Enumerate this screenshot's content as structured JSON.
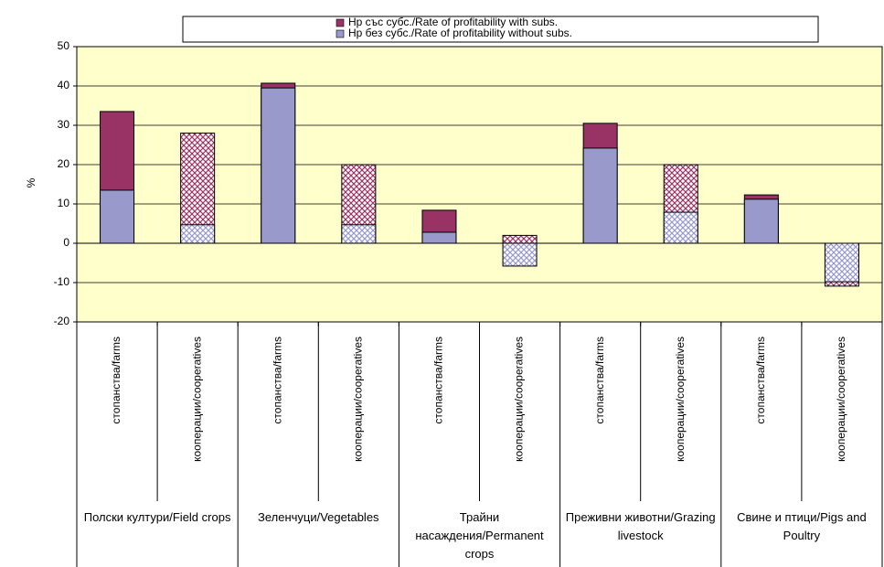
{
  "chart_data": {
    "type": "bar",
    "y_label": "%",
    "categories": [
      "стопанства/farms",
      "кооперации/cooperatives",
      "стопанства/farms",
      "кооперации/cooperatives",
      "стопанства/farms",
      "кооперации/cooperatives",
      "стопанства/farms",
      "кооперации/cooperatives",
      "стопанства/farms",
      "кооперации/cooperatives"
    ],
    "groups": [
      "Полски култури/Field crops",
      "Зеленчуци/Vegetables",
      "Трайни насаждения/Permanent crops",
      "Преживни животни/Grazing livestock",
      "Свине и птици/Pigs and Poultry"
    ],
    "hatch": [
      false,
      true,
      false,
      true,
      false,
      true,
      false,
      true,
      false,
      true
    ],
    "series": [
      {
        "name": "Нр със субс./Rate of profitability with subs.",
        "color": "#993366",
        "values": [
          33.5,
          28,
          40.7,
          20,
          8.4,
          2,
          30.5,
          20,
          12.3,
          -10.9
        ]
      },
      {
        "name": "Нр без субс./Rate of profitability without subs.",
        "color": "#9999cc",
        "values": [
          13.5,
          4.7,
          39.5,
          4.7,
          2.8,
          -5.8,
          24.2,
          7.9,
          11.2,
          -9.8
        ]
      }
    ],
    "ylim": [
      -20,
      50
    ],
    "yticks": [
      -20,
      -10,
      0,
      10,
      20,
      30,
      40,
      50
    ],
    "grid": true,
    "plot_background": "#ffffcc"
  }
}
